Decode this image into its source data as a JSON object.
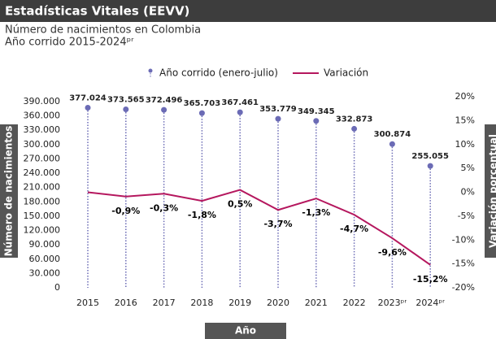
{
  "chart_data": {
    "type": "combo",
    "header": "Estadísticas Vitales (EEVV)",
    "title": "Número de nacimientos en Colombia",
    "subtitle": "Año corrido 2015-2024ᵖʳ",
    "categories": [
      "2015",
      "2016",
      "2017",
      "2018",
      "2019",
      "2020",
      "2021",
      "2022",
      "2023ᵖʳ",
      "2024ᵖʳ"
    ],
    "x_label": "Año",
    "y_label": "Número de nacimientos",
    "y2_label": "Variación porcentual",
    "series": [
      {
        "name": "Año corrido (enero-julio)",
        "type": "lollipop",
        "color": "#6b6bb5",
        "values": [
          377024,
          373565,
          372496,
          365703,
          367461,
          353779,
          349345,
          332873,
          300874,
          255055
        ],
        "value_labels": [
          "377.024",
          "373.565",
          "372.496",
          "365.703",
          "367.461",
          "353.779",
          "349.345",
          "332.873",
          "300.874",
          "255.055"
        ]
      },
      {
        "name": "Variación",
        "type": "line",
        "axis": "y2",
        "color": "#b5175e",
        "values": [
          0,
          -0.9,
          -0.3,
          -1.8,
          0.5,
          -3.7,
          -1.3,
          -4.7,
          -9.6,
          -15.2
        ],
        "value_labels": [
          null,
          "-0,9%",
          "-0,3%",
          "-1,8%",
          "0,5%",
          "-3,7%",
          "-1,3%",
          "-4,7%",
          "-9,6%",
          "-15,2%"
        ]
      }
    ],
    "ylim": [
      0,
      400000
    ],
    "yticks": [
      0,
      {
        "value": 30000,
        "label": "30.000"
      },
      {
        "value": 60000,
        "label": "60.000"
      },
      {
        "value": 90000,
        "label": "90.000"
      },
      {
        "value": 120000,
        "label": "120.000"
      },
      {
        "value": 150000,
        "label": "150.000"
      },
      {
        "value": 180000,
        "label": "180.000"
      },
      {
        "value": 210000,
        "label": "210.000"
      },
      {
        "value": 240000,
        "label": "240.000"
      },
      {
        "value": 270000,
        "label": "270.000"
      },
      {
        "value": 300000,
        "label": "300.000"
      },
      {
        "value": 330000,
        "label": "330.000"
      },
      {
        "value": 360000,
        "label": "360.000"
      },
      {
        "value": 390000,
        "label": "390.000"
      }
    ],
    "y2lim": [
      -20,
      20
    ],
    "y2ticks": [
      {
        "value": -20,
        "label": "-20%"
      },
      {
        "value": -15,
        "label": "-15%"
      },
      {
        "value": -10,
        "label": "-10%"
      },
      {
        "value": -5,
        "label": "-5%"
      },
      {
        "value": 0,
        "label": "0%"
      },
      {
        "value": 5,
        "label": "5%"
      },
      {
        "value": 10,
        "label": "10%"
      },
      {
        "value": 15,
        "label": "15%"
      },
      {
        "value": 20,
        "label": "20%"
      }
    ],
    "grid": false
  }
}
